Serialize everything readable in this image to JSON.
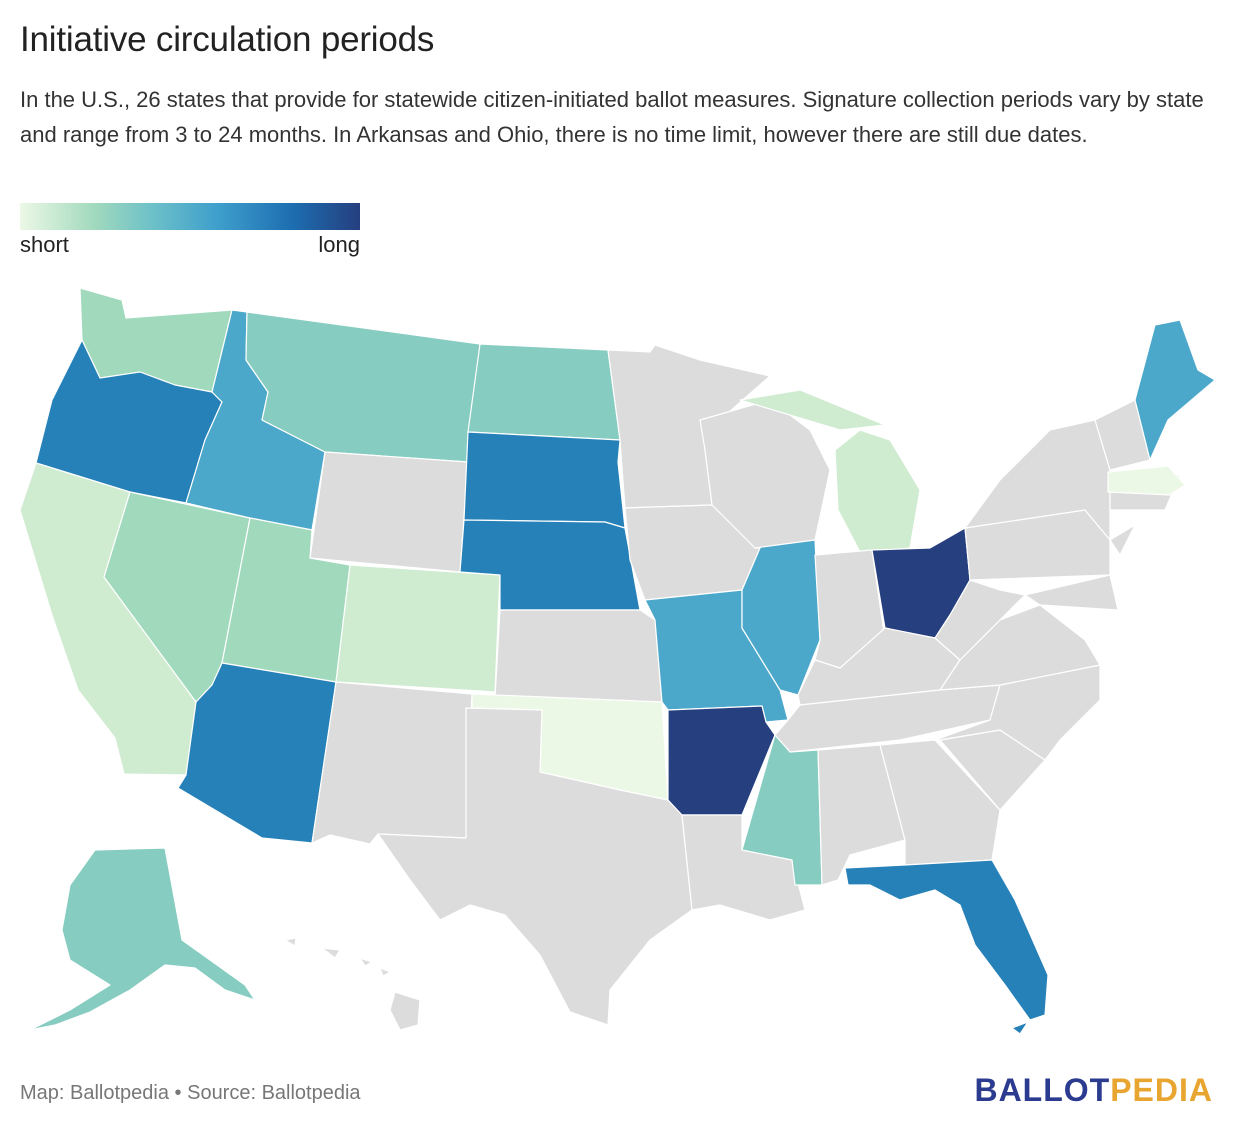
{
  "title": "Initiative circulation periods",
  "description": "In the U.S., 26 states that provide for statewide citizen-initiated ballot measures. Signature collection periods vary by state and range from 3 to 24 months. In Arkansas and Ohio, there is no time limit, however there are still due dates.",
  "legend": {
    "low_label": "short",
    "high_label": "long"
  },
  "colors": {
    "none": "#dcdcdc",
    "c1": "#ecf8e6",
    "c2": "#cfebd0",
    "c3": "#a1d9bd",
    "c4": "#86ccc0",
    "c5": "#4ca8cb",
    "c6": "#2681b8",
    "c7": "#253f7f"
  },
  "footer": {
    "credit": "Map: Ballotpedia • Source: Ballotpedia"
  },
  "logo": {
    "part1": "BALLOT",
    "part2": "PEDIA"
  },
  "map_data": {
    "WA": "c3",
    "OR": "c6",
    "CA": "c2",
    "NV": "c3",
    "ID": "c5",
    "MT": "c4",
    "WY": "none",
    "UT": "c3",
    "AZ": "c6",
    "CO": "c2",
    "NM": "none",
    "ND": "c4",
    "SD": "c6",
    "NE": "c6",
    "KS": "none",
    "OK": "c1",
    "TX": "none",
    "MN": "none",
    "IA": "none",
    "MO": "c5",
    "AR": "c7",
    "LA": "none",
    "WI": "none",
    "IL": "c5",
    "MS": "c4",
    "MI": "c2",
    "IN": "none",
    "OH": "c7",
    "KY": "none",
    "TN": "none",
    "AL": "none",
    "GA": "none",
    "FL": "c6",
    "SC": "none",
    "NC": "none",
    "VA": "none",
    "WV": "none",
    "PA": "none",
    "NY": "none",
    "ME": "c5",
    "MA": "c1",
    "AK": "c4",
    "HI": "none"
  }
}
